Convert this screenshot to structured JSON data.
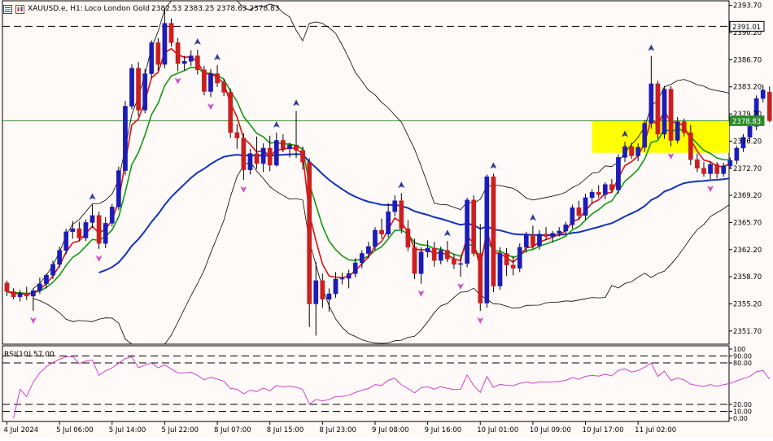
{
  "header": {
    "symbol": "XAUUSD.e, H1:",
    "description": "Loco London Gold",
    "ohlc": "2382.53 2383.25 2378.63 2378.83"
  },
  "main_price_axis": {
    "ticks": [
      "2393.70",
      "2390.20",
      "2386.70",
      "2383.20",
      "2379.70",
      "2376.20",
      "2372.70",
      "2369.20",
      "2365.70",
      "2362.20",
      "2358.70",
      "2355.20",
      "2351.70"
    ],
    "tick_values": [
      2393.7,
      2390.2,
      2386.7,
      2383.2,
      2379.7,
      2376.2,
      2372.7,
      2369.2,
      2365.7,
      2362.2,
      2358.7,
      2355.2,
      2351.7
    ],
    "ylim": [
      2350.0,
      2394.3
    ]
  },
  "price_tags": {
    "resistance": "2391.01",
    "resistance_value": 2391.01,
    "current": "2378.83",
    "current_value": 2378.83
  },
  "support_zone": {
    "from": 2374.7,
    "to": 2378.83,
    "color": "#ffff00"
  },
  "x_axis": {
    "labels": [
      "4 Jul 2024",
      "5 Jul 06:00",
      "5 Jul 14:00",
      "5 Jul 22:00",
      "8 Jul 07:00",
      "8 Jul 15:00",
      "8 Jul 23:00",
      "9 Jul 08:00",
      "9 Jul 16:00",
      "10 Jul 01:00",
      "10 Jul 09:00",
      "10 Jul 17:00",
      "11 Jul 02:00"
    ],
    "label_bar_index": [
      0,
      8,
      16,
      24,
      32,
      40,
      48,
      56,
      64,
      72,
      80,
      88,
      96
    ]
  },
  "rsi": {
    "label": "RSI(10) 57.00",
    "period": 10,
    "ticks": [
      "100",
      "90.00",
      "80.00",
      "20.00",
      "10.00",
      "0.00"
    ],
    "tick_values": [
      100,
      90,
      80,
      20,
      10,
      0
    ],
    "levels": [
      90,
      80,
      20,
      10
    ],
    "last": 57.0
  },
  "colors": {
    "bull": "#1c1cb8",
    "bear": "#cc1f1f",
    "ma_fast": "#dd1111",
    "ma_slow": "#119911",
    "ma_long": "#1133bb",
    "bands": "#000000",
    "rsi": "#d040d0",
    "fractal_up": "#2a3a9a",
    "fractal_down": "#d050d0",
    "arrow": "#118811",
    "hline": "#2f8a2f"
  },
  "chart_data": {
    "type": "candlestick",
    "symbol": "XAUUSD",
    "timeframe": "H1",
    "overlays": [
      "fast MA (red)",
      "slow MA (green)",
      "long MA (blue)",
      "envelope bands (black)",
      "fractals"
    ],
    "candles": [
      [
        2357.9,
        2358.2,
        2356.2,
        2356.8
      ],
      [
        2356.8,
        2357.2,
        2355.8,
        2356.1
      ],
      [
        2356.1,
        2357.0,
        2355.5,
        2356.6
      ],
      [
        2356.6,
        2357.4,
        2355.7,
        2356.2
      ],
      [
        2356.2,
        2357.2,
        2354.3,
        2356.9
      ],
      [
        2356.9,
        2358.6,
        2356.5,
        2357.8
      ],
      [
        2357.8,
        2359.1,
        2357.2,
        2358.9
      ],
      [
        2358.9,
        2360.8,
        2358.4,
        2360.3
      ],
      [
        2360.3,
        2362.6,
        2359.9,
        2362.1
      ],
      [
        2362.1,
        2364.9,
        2361.6,
        2364.5
      ],
      [
        2364.5,
        2365.9,
        2363.6,
        2364.9
      ],
      [
        2364.9,
        2365.8,
        2363.3,
        2363.7
      ],
      [
        2363.7,
        2366.1,
        2363.3,
        2365.7
      ],
      [
        2365.7,
        2368.0,
        2365.0,
        2366.6
      ],
      [
        2366.6,
        2367.1,
        2362.3,
        2363.0
      ],
      [
        2363.0,
        2366.4,
        2362.4,
        2365.6
      ],
      [
        2365.6,
        2368.1,
        2365.2,
        2367.7
      ],
      [
        2367.7,
        2372.9,
        2367.3,
        2372.4
      ],
      [
        2372.4,
        2381.4,
        2371.8,
        2380.7
      ],
      [
        2380.7,
        2386.1,
        2380.3,
        2385.6
      ],
      [
        2385.6,
        2386.4,
        2379.4,
        2380.2
      ],
      [
        2380.2,
        2385.5,
        2379.8,
        2384.9
      ],
      [
        2384.9,
        2389.2,
        2384.3,
        2388.9
      ],
      [
        2388.9,
        2389.5,
        2385.3,
        2386.1
      ],
      [
        2386.1,
        2393.2,
        2385.6,
        2391.4
      ],
      [
        2391.4,
        2392.0,
        2388.4,
        2388.9
      ],
      [
        2388.9,
        2389.5,
        2385.2,
        2386.2
      ],
      [
        2386.2,
        2387.2,
        2385.3,
        2386.5
      ],
      [
        2386.5,
        2387.9,
        2385.9,
        2387.2
      ],
      [
        2387.2,
        2388.0,
        2384.8,
        2385.4
      ],
      [
        2385.4,
        2385.9,
        2382.1,
        2382.6
      ],
      [
        2382.6,
        2385.5,
        2381.9,
        2384.9
      ],
      [
        2384.9,
        2386.0,
        2383.2,
        2383.7
      ],
      [
        2383.7,
        2384.2,
        2382.0,
        2382.5
      ],
      [
        2382.5,
        2383.0,
        2376.6,
        2377.3
      ],
      [
        2377.3,
        2378.4,
        2375.2,
        2376.6
      ],
      [
        2376.6,
        2377.2,
        2371.2,
        2372.5
      ],
      [
        2372.5,
        2375.2,
        2371.9,
        2374.6
      ],
      [
        2374.6,
        2376.8,
        2372.6,
        2373.3
      ],
      [
        2373.3,
        2375.9,
        2372.2,
        2375.3
      ],
      [
        2375.3,
        2376.9,
        2372.3,
        2373.1
      ],
      [
        2373.1,
        2377.3,
        2372.9,
        2376.3
      ],
      [
        2376.3,
        2377.1,
        2374.8,
        2375.2
      ],
      [
        2375.2,
        2376.0,
        2374.1,
        2375.7
      ],
      [
        2375.7,
        2380.1,
        2374.0,
        2375.0
      ],
      [
        2375.0,
        2375.5,
        2372.5,
        2373.5
      ],
      [
        2373.5,
        2374.0,
        2352.2,
        2355.2
      ],
      [
        2355.2,
        2360.6,
        2351.1,
        2358.2
      ],
      [
        2358.2,
        2359.1,
        2354.7,
        2355.8
      ],
      [
        2355.8,
        2357.2,
        2354.2,
        2356.5
      ],
      [
        2356.5,
        2359.3,
        2356.0,
        2358.4
      ],
      [
        2358.4,
        2359.2,
        2357.7,
        2358.5
      ],
      [
        2358.5,
        2359.6,
        2357.2,
        2359.1
      ],
      [
        2359.1,
        2361.1,
        2358.6,
        2360.5
      ],
      [
        2360.5,
        2362.1,
        2359.8,
        2361.7
      ],
      [
        2361.7,
        2363.2,
        2361.1,
        2362.6
      ],
      [
        2362.6,
        2365.1,
        2362.1,
        2364.7
      ],
      [
        2364.7,
        2366.2,
        2363.6,
        2364.2
      ],
      [
        2364.2,
        2368.2,
        2363.8,
        2367.1
      ],
      [
        2367.1,
        2369.2,
        2366.5,
        2368.5
      ],
      [
        2368.5,
        2369.5,
        2364.3,
        2364.9
      ],
      [
        2364.9,
        2366.0,
        2362.0,
        2362.5
      ],
      [
        2362.5,
        2363.6,
        2358.4,
        2359.1
      ],
      [
        2359.1,
        2362.5,
        2357.8,
        2361.9
      ],
      [
        2361.9,
        2363.4,
        2361.2,
        2362.4
      ],
      [
        2362.4,
        2363.2,
        2360.0,
        2360.8
      ],
      [
        2360.8,
        2362.6,
        2360.3,
        2362.1
      ],
      [
        2362.1,
        2363.3,
        2360.6,
        2361.0
      ],
      [
        2361.0,
        2361.6,
        2359.7,
        2360.3
      ],
      [
        2360.3,
        2361.2,
        2358.7,
        2360.4
      ],
      [
        2360.4,
        2368.9,
        2359.9,
        2368.6
      ],
      [
        2368.6,
        2369.2,
        2361.3,
        2361.7
      ],
      [
        2361.7,
        2365.5,
        2354.3,
        2355.3
      ],
      [
        2355.3,
        2371.9,
        2354.7,
        2371.6
      ],
      [
        2371.6,
        2372.0,
        2356.7,
        2357.5
      ],
      [
        2357.5,
        2362.5,
        2357.0,
        2361.7
      ],
      [
        2361.7,
        2362.4,
        2358.8,
        2360.2
      ],
      [
        2360.2,
        2361.4,
        2358.9,
        2359.8
      ],
      [
        2359.8,
        2363.0,
        2359.3,
        2362.5
      ],
      [
        2362.5,
        2364.5,
        2361.8,
        2364.1
      ],
      [
        2364.1,
        2365.3,
        2362.3,
        2362.7
      ],
      [
        2362.7,
        2364.7,
        2362.2,
        2364.2
      ],
      [
        2364.2,
        2365.1,
        2363.4,
        2363.9
      ],
      [
        2363.9,
        2364.6,
        2363.1,
        2364.3
      ],
      [
        2364.3,
        2365.1,
        2363.9,
        2364.6
      ],
      [
        2364.6,
        2365.8,
        2364.2,
        2365.4
      ],
      [
        2365.4,
        2368.0,
        2364.9,
        2367.6
      ],
      [
        2367.6,
        2368.5,
        2366.1,
        2366.6
      ],
      [
        2366.6,
        2369.4,
        2366.0,
        2368.9
      ],
      [
        2368.9,
        2370.0,
        2368.2,
        2369.6
      ],
      [
        2369.6,
        2370.5,
        2368.9,
        2369.3
      ],
      [
        2369.3,
        2370.9,
        2368.7,
        2370.6
      ],
      [
        2370.6,
        2371.3,
        2369.5,
        2369.9
      ],
      [
        2369.9,
        2374.5,
        2369.4,
        2374.1
      ],
      [
        2374.1,
        2376.1,
        2373.5,
        2375.5
      ],
      [
        2375.5,
        2376.0,
        2373.9,
        2374.3
      ],
      [
        2374.3,
        2375.9,
        2373.6,
        2375.4
      ],
      [
        2375.4,
        2378.9,
        2374.8,
        2378.5
      ],
      [
        2378.5,
        2387.2,
        2377.8,
        2383.6
      ],
      [
        2383.6,
        2384.0,
        2376.5,
        2377.1
      ],
      [
        2377.1,
        2383.3,
        2376.5,
        2382.9
      ],
      [
        2382.9,
        2383.3,
        2375.5,
        2376.3
      ],
      [
        2376.3,
        2379.3,
        2375.9,
        2378.7
      ],
      [
        2378.7,
        2379.1,
        2376.8,
        2377.3
      ],
      [
        2377.3,
        2378.3,
        2373.1,
        2373.8
      ],
      [
        2373.8,
        2374.6,
        2372.2,
        2372.7
      ],
      [
        2372.7,
        2373.5,
        2371.6,
        2372.0
      ],
      [
        2372.0,
        2373.6,
        2371.3,
        2373.2
      ],
      [
        2373.2,
        2373.5,
        2371.4,
        2372.0
      ],
      [
        2372.0,
        2373.4,
        2371.6,
        2373.0
      ],
      [
        2373.0,
        2374.1,
        2372.6,
        2373.7
      ],
      [
        2373.7,
        2375.6,
        2373.2,
        2375.3
      ],
      [
        2375.3,
        2377.1,
        2374.8,
        2376.7
      ],
      [
        2376.7,
        2378.6,
        2376.2,
        2378.1
      ],
      [
        2378.1,
        2382.1,
        2377.6,
        2381.7
      ],
      [
        2381.7,
        2383.5,
        2381.2,
        2382.8
      ],
      [
        2382.53,
        2383.25,
        2378.63,
        2378.83
      ]
    ]
  }
}
